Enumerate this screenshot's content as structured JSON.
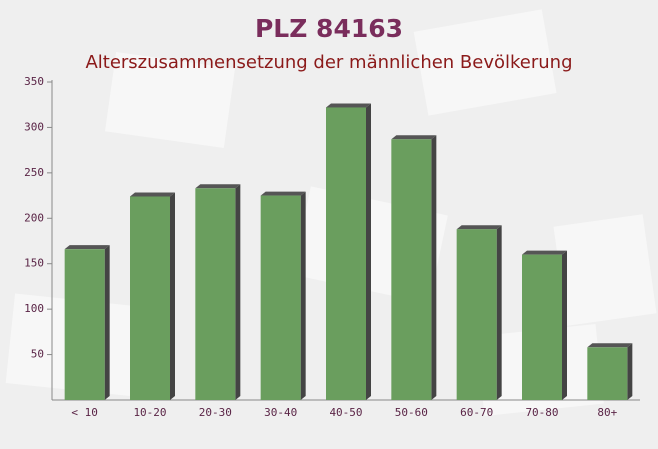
{
  "chart_data": {
    "type": "bar",
    "title": "PLZ 84163",
    "subtitle": "Alterszusammensetzung der männlichen Bevölkerung",
    "categories": [
      "< 10",
      "10-20",
      "20-30",
      "30-40",
      "40-50",
      "50-60",
      "60-70",
      "70-80",
      "80+"
    ],
    "values": [
      166,
      224,
      233,
      225,
      322,
      287,
      188,
      160,
      58
    ],
    "color": "#6a9e5e",
    "ylim": [
      0,
      350
    ],
    "yticks": [
      50,
      100,
      150,
      200,
      250,
      300,
      350
    ],
    "grid": false
  }
}
